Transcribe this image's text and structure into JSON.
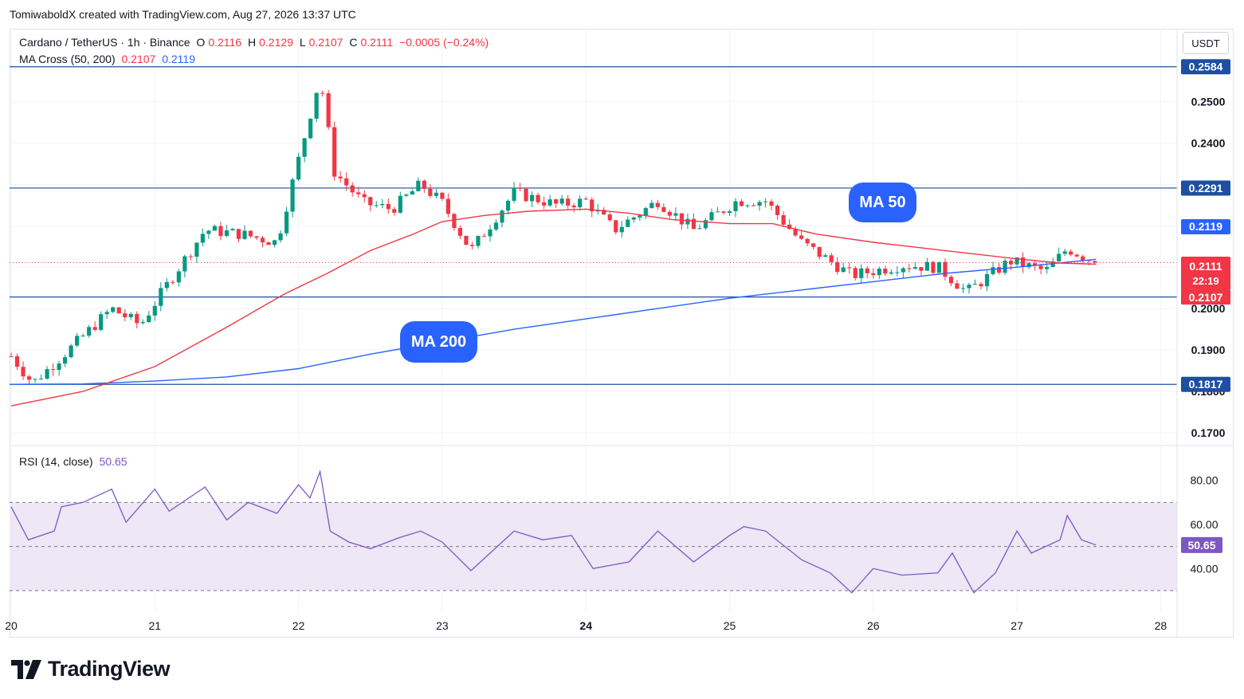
{
  "attribution": "TomiwaboldX created with TradingView.com, Aug 27, 2026 13:37 UTC",
  "legend": {
    "symbol": "Cardano / TetherUS · 1h · Binance",
    "open_label": "O",
    "open": "0.2116",
    "high_label": "H",
    "high": "0.2129",
    "low_label": "L",
    "low": "0.2107",
    "close_label": "C",
    "close": "0.2111",
    "change": "−0.0005 (−0.24%)",
    "ma_label": "MA Cross (50, 200)",
    "ma50_value": "0.2107",
    "ma200_value": "0.2119",
    "rsi_label": "RSI (14, close)",
    "rsi_value": "50.65"
  },
  "currency_button": "USDT",
  "callouts": {
    "ma50": "MA 50",
    "ma200": "MA 200"
  },
  "brand": {
    "logo_text": "TradingView"
  },
  "price_tags": {
    "ma200_tag": "0.2119",
    "last_price": "0.2111",
    "countdown": "22:19",
    "ma50_tag": "0.2107"
  },
  "colors": {
    "up": "#089981",
    "down": "#f23645",
    "ma50": "#f23645",
    "ma200": "#2962ff",
    "hline": "#1e4fa0",
    "rsi": "#7e57c2",
    "rsi_band": "#ede7f6"
  },
  "chart_data": [
    {
      "type": "candlestick",
      "title": "Cardano / TetherUS · 1h · Binance",
      "x_ticks": [
        "20",
        "21",
        "22",
        "23",
        "24",
        "25",
        "26",
        "27",
        "28"
      ],
      "x_tick_days": [
        20,
        21,
        22,
        23,
        24,
        25,
        26,
        27,
        28
      ],
      "bold_tick": "24",
      "ylim": [
        0.1675,
        0.2595
      ],
      "y_ticks": [
        0.17,
        0.18,
        0.19,
        0.2,
        0.21,
        0.22,
        0.23,
        0.24,
        0.25
      ],
      "y_tick_labels": [
        "0.1700",
        "0.1800",
        "0.1900",
        "0.2000",
        "0.2100",
        "0.2200",
        "0.2300",
        "0.2400",
        "0.2500"
      ],
      "horizontal_levels": [
        {
          "value": 0.2584,
          "label": "0.2584"
        },
        {
          "value": 0.2291,
          "label": "0.2291"
        },
        {
          "value": 0.2028,
          "label": "0.2028"
        },
        {
          "value": 0.1817,
          "label": "0.1817"
        }
      ],
      "last_price": 0.2111,
      "key_points": [
        {
          "day": 20.0,
          "price": 0.1885
        },
        {
          "day": 20.15,
          "price": 0.182
        },
        {
          "day": 20.4,
          "price": 0.19
        },
        {
          "day": 20.7,
          "price": 0.2
        },
        {
          "day": 20.9,
          "price": 0.196
        },
        {
          "day": 21.05,
          "price": 0.204
        },
        {
          "day": 21.35,
          "price": 0.219
        },
        {
          "day": 21.6,
          "price": 0.218
        },
        {
          "day": 21.85,
          "price": 0.216
        },
        {
          "day": 22.0,
          "price": 0.236
        },
        {
          "day": 22.15,
          "price": 0.256
        },
        {
          "day": 22.25,
          "price": 0.233
        },
        {
          "day": 22.45,
          "price": 0.2255
        },
        {
          "day": 22.65,
          "price": 0.224
        },
        {
          "day": 22.85,
          "price": 0.23
        },
        {
          "day": 23.0,
          "price": 0.2255
        },
        {
          "day": 23.2,
          "price": 0.214
        },
        {
          "day": 23.5,
          "price": 0.228
        },
        {
          "day": 23.8,
          "price": 0.225
        },
        {
          "day": 24.0,
          "price": 0.226
        },
        {
          "day": 24.2,
          "price": 0.219
        },
        {
          "day": 24.5,
          "price": 0.226
        },
        {
          "day": 24.75,
          "price": 0.219
        },
        {
          "day": 25.05,
          "price": 0.226
        },
        {
          "day": 25.25,
          "price": 0.226
        },
        {
          "day": 25.5,
          "price": 0.216
        },
        {
          "day": 25.85,
          "price": 0.208
        },
        {
          "day": 26.2,
          "price": 0.2105
        },
        {
          "day": 26.45,
          "price": 0.21
        },
        {
          "day": 26.65,
          "price": 0.204
        },
        {
          "day": 26.95,
          "price": 0.2115
        },
        {
          "day": 27.2,
          "price": 0.209
        },
        {
          "day": 27.35,
          "price": 0.2145
        },
        {
          "day": 27.55,
          "price": 0.2111
        }
      ],
      "series": [
        {
          "name": "MA 50",
          "points": [
            {
              "day": 20.0,
              "price": 0.1765
            },
            {
              "day": 20.5,
              "price": 0.18
            },
            {
              "day": 21.0,
              "price": 0.186
            },
            {
              "day": 21.5,
              "price": 0.1955
            },
            {
              "day": 21.9,
              "price": 0.2035
            },
            {
              "day": 22.2,
              "price": 0.2085
            },
            {
              "day": 22.5,
              "price": 0.214
            },
            {
              "day": 22.8,
              "price": 0.218
            },
            {
              "day": 23.0,
              "price": 0.221
            },
            {
              "day": 23.3,
              "price": 0.2225
            },
            {
              "day": 23.6,
              "price": 0.2235
            },
            {
              "day": 24.0,
              "price": 0.224
            },
            {
              "day": 24.3,
              "price": 0.223
            },
            {
              "day": 24.6,
              "price": 0.2215
            },
            {
              "day": 25.0,
              "price": 0.2205
            },
            {
              "day": 25.3,
              "price": 0.2205
            },
            {
              "day": 25.6,
              "price": 0.218
            },
            {
              "day": 26.0,
              "price": 0.216
            },
            {
              "day": 26.5,
              "price": 0.214
            },
            {
              "day": 27.0,
              "price": 0.212
            },
            {
              "day": 27.3,
              "price": 0.211
            },
            {
              "day": 27.55,
              "price": 0.2107
            }
          ]
        },
        {
          "name": "MA 200",
          "points": [
            {
              "day": 20.0,
              "price": 0.1817
            },
            {
              "day": 20.5,
              "price": 0.1818
            },
            {
              "day": 21.0,
              "price": 0.1825
            },
            {
              "day": 21.5,
              "price": 0.1835
            },
            {
              "day": 22.0,
              "price": 0.1855
            },
            {
              "day": 22.5,
              "price": 0.189
            },
            {
              "day": 23.0,
              "price": 0.192
            },
            {
              "day": 23.5,
              "price": 0.195
            },
            {
              "day": 24.0,
              "price": 0.1975
            },
            {
              "day": 24.5,
              "price": 0.2
            },
            {
              "day": 25.0,
              "price": 0.2025
            },
            {
              "day": 25.5,
              "price": 0.2045
            },
            {
              "day": 26.0,
              "price": 0.2065
            },
            {
              "day": 26.5,
              "price": 0.2085
            },
            {
              "day": 27.0,
              "price": 0.21
            },
            {
              "day": 27.55,
              "price": 0.2119
            }
          ]
        }
      ]
    },
    {
      "type": "line",
      "title": "RSI (14, close)",
      "ylim": [
        26,
        90
      ],
      "y_ticks": [
        40,
        60,
        80
      ],
      "y_tick_labels": [
        "40.00",
        "60.00",
        "80.00"
      ],
      "band": [
        30,
        70
      ],
      "midline": 50,
      "last_value": 50.65,
      "series": [
        {
          "name": "RSI (14, close)",
          "points": [
            {
              "day": 20.0,
              "value": 68
            },
            {
              "day": 20.12,
              "value": 53
            },
            {
              "day": 20.3,
              "value": 57
            },
            {
              "day": 20.35,
              "value": 68
            },
            {
              "day": 20.5,
              "value": 70
            },
            {
              "day": 20.7,
              "value": 76
            },
            {
              "day": 20.8,
              "value": 61
            },
            {
              "day": 21.0,
              "value": 76
            },
            {
              "day": 21.1,
              "value": 66
            },
            {
              "day": 21.35,
              "value": 77
            },
            {
              "day": 21.5,
              "value": 62
            },
            {
              "day": 21.65,
              "value": 70
            },
            {
              "day": 21.85,
              "value": 65
            },
            {
              "day": 22.0,
              "value": 78
            },
            {
              "day": 22.08,
              "value": 72
            },
            {
              "day": 22.15,
              "value": 84
            },
            {
              "day": 22.22,
              "value": 57
            },
            {
              "day": 22.35,
              "value": 52
            },
            {
              "day": 22.5,
              "value": 49
            },
            {
              "day": 22.7,
              "value": 54
            },
            {
              "day": 22.85,
              "value": 57
            },
            {
              "day": 23.0,
              "value": 52
            },
            {
              "day": 23.2,
              "value": 39
            },
            {
              "day": 23.5,
              "value": 57
            },
            {
              "day": 23.7,
              "value": 53
            },
            {
              "day": 23.9,
              "value": 55
            },
            {
              "day": 24.05,
              "value": 40
            },
            {
              "day": 24.3,
              "value": 43
            },
            {
              "day": 24.5,
              "value": 57
            },
            {
              "day": 24.75,
              "value": 43
            },
            {
              "day": 25.0,
              "value": 55
            },
            {
              "day": 25.1,
              "value": 59
            },
            {
              "day": 25.25,
              "value": 57
            },
            {
              "day": 25.5,
              "value": 44
            },
            {
              "day": 25.7,
              "value": 38
            },
            {
              "day": 25.85,
              "value": 29
            },
            {
              "day": 26.0,
              "value": 40
            },
            {
              "day": 26.2,
              "value": 37
            },
            {
              "day": 26.45,
              "value": 38
            },
            {
              "day": 26.55,
              "value": 47
            },
            {
              "day": 26.7,
              "value": 29
            },
            {
              "day": 26.85,
              "value": 38
            },
            {
              "day": 27.0,
              "value": 57
            },
            {
              "day": 27.1,
              "value": 47
            },
            {
              "day": 27.3,
              "value": 53
            },
            {
              "day": 27.35,
              "value": 64
            },
            {
              "day": 27.45,
              "value": 53
            },
            {
              "day": 27.55,
              "value": 50.65
            }
          ]
        }
      ]
    }
  ]
}
